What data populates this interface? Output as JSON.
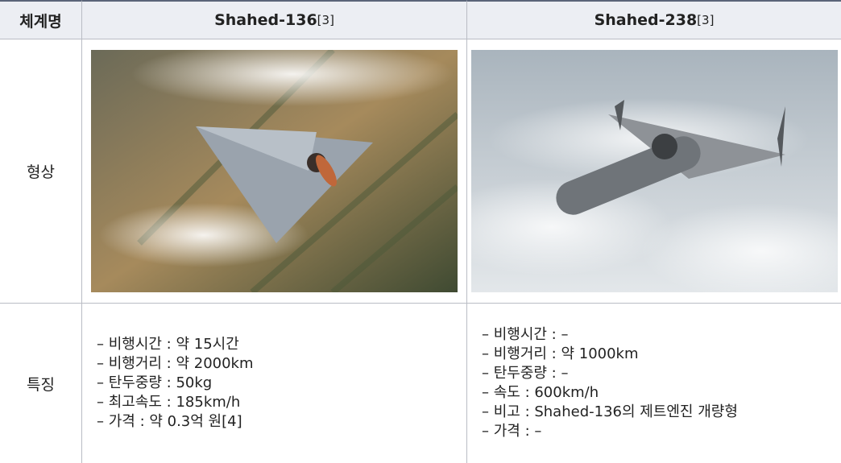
{
  "table": {
    "header": {
      "label": "체계명",
      "systems": [
        {
          "name": "Shahed-136",
          "ref": "[3]"
        },
        {
          "name": "Shahed-238",
          "ref": "[3]"
        }
      ]
    },
    "rows": [
      {
        "label": "형상"
      },
      {
        "label": "특징",
        "cells": [
          [
            "– 비행시간 : 약 15시간",
            "– 비행거리 : 약 2000km",
            "– 탄두중량 : 50kg",
            "– 최고속도 : 185km/h",
            "– 가격 : 약 0.3억 원[4]"
          ],
          [
            "– 비행시간 : –",
            "– 비행거리 : 약 1000km",
            "– 탄두중량 : –",
            "– 속도 : 600km/h",
            "– 비고 : Shahed-136의 제트엔진 개량형",
            "– 가격 : –"
          ]
        ]
      }
    ]
  }
}
